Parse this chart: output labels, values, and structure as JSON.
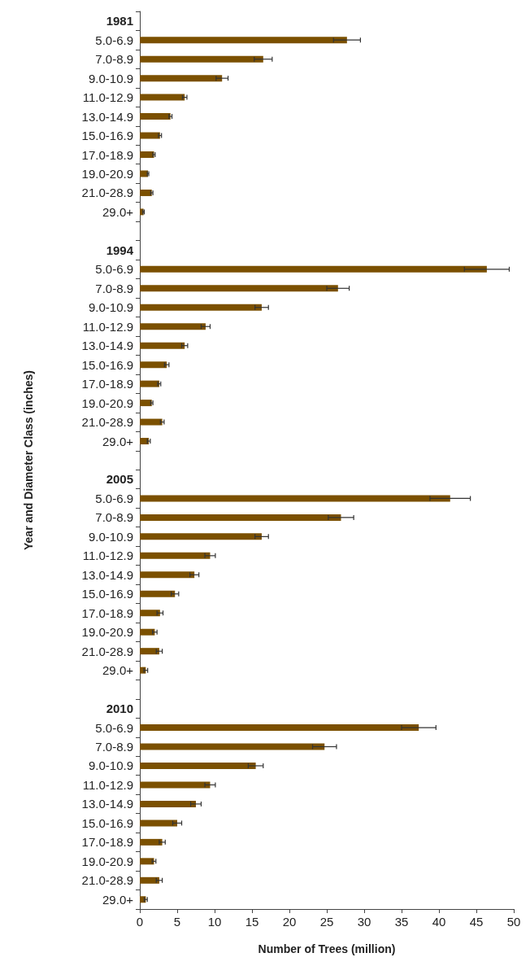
{
  "chart_data": {
    "type": "bar",
    "orientation": "horizontal",
    "xlabel": "Number of Trees (million)",
    "ylabel": "Year and Diameter Class (inches)",
    "categories": [
      "1981",
      "5.0-6.9",
      "7.0-8.9",
      "9.0-10.9",
      "11.0-12.9",
      "13.0-14.9",
      "15.0-16.9",
      "17.0-18.9",
      "19.0-20.9",
      "21.0-28.9",
      "29.0+",
      null,
      "1994",
      "5.0-6.9",
      "7.0-8.9",
      "9.0-10.9",
      "11.0-12.9",
      "13.0-14.9",
      "15.0-16.9",
      "17.0-18.9",
      "19.0-20.9",
      "21.0-28.9",
      "29.0+",
      null,
      "2005",
      "5.0-6.9",
      "7.0-8.9",
      "9.0-10.9",
      "11.0-12.9",
      "13.0-14.9",
      "15.0-16.9",
      "17.0-18.9",
      "19.0-20.9",
      "21.0-28.9",
      "29.0+",
      null,
      "2010",
      "5.0-6.9",
      "7.0-8.9",
      "9.0-10.9",
      "11.0-12.9",
      "13.0-14.9",
      "15.0-16.9",
      "17.0-18.9",
      "19.0-20.9",
      "21.0-28.9",
      "29.0+"
    ],
    "values": [
      null,
      27.7,
      16.5,
      11.0,
      6.0,
      4.1,
      2.7,
      1.9,
      1.1,
      1.6,
      0.5,
      null,
      null,
      46.4,
      26.5,
      16.3,
      8.8,
      6.0,
      3.6,
      2.6,
      1.6,
      3.0,
      1.2,
      null,
      null,
      41.5,
      26.9,
      16.3,
      9.4,
      7.3,
      4.7,
      2.7,
      2.0,
      2.6,
      0.8,
      null,
      null,
      37.3,
      24.7,
      15.5,
      9.4,
      7.5,
      5.0,
      3.0,
      1.9,
      2.6,
      0.8
    ],
    "errors": [
      null,
      1.8,
      1.2,
      0.8,
      0.3,
      0.2,
      0.2,
      0.15,
      0.1,
      0.15,
      0.1,
      null,
      null,
      3.0,
      1.5,
      0.9,
      0.6,
      0.4,
      0.3,
      0.2,
      0.15,
      0.25,
      0.2,
      null,
      null,
      2.7,
      1.7,
      0.9,
      0.7,
      0.6,
      0.5,
      0.4,
      0.3,
      0.4,
      0.25,
      null,
      null,
      2.3,
      1.6,
      1.0,
      0.7,
      0.7,
      0.6,
      0.4,
      0.25,
      0.4,
      0.2
    ],
    "color": "#7b5000",
    "xlim": [
      0,
      50
    ],
    "xticks": [
      0,
      5,
      10,
      15,
      20,
      25,
      30,
      35,
      40,
      45,
      50
    ],
    "grid": false
  }
}
